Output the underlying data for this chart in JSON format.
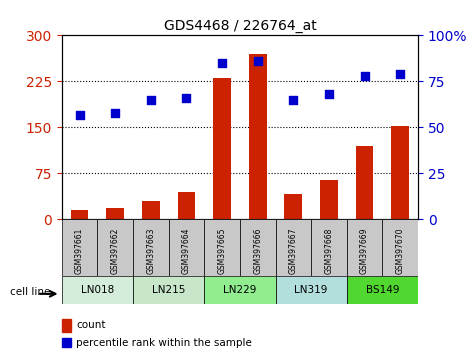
{
  "title": "GDS4468 / 226764_at",
  "samples": [
    "GSM397661",
    "GSM397662",
    "GSM397663",
    "GSM397664",
    "GSM397665",
    "GSM397666",
    "GSM397667",
    "GSM397668",
    "GSM397669",
    "GSM397670"
  ],
  "count_values": [
    15,
    18,
    30,
    45,
    230,
    270,
    42,
    65,
    120,
    152
  ],
  "percentile_values": [
    57,
    58,
    65,
    66,
    85,
    86,
    65,
    68,
    78,
    79
  ],
  "cell_lines": [
    {
      "label": "LN018",
      "start": 0,
      "end": 2,
      "color": "#d4edda"
    },
    {
      "label": "LN215",
      "start": 2,
      "end": 4,
      "color": "#c8e6c9"
    },
    {
      "label": "LN229",
      "start": 4,
      "end": 6,
      "color": "#90ee90"
    },
    {
      "label": "LN319",
      "start": 6,
      "end": 8,
      "color": "#b2dfdb"
    },
    {
      "label": "BS149",
      "start": 8,
      "end": 10,
      "color": "#50d830"
    }
  ],
  "bar_color": "#cc2200",
  "dot_color": "#0000cc",
  "left_ylim": [
    0,
    300
  ],
  "right_ylim": [
    0,
    100
  ],
  "left_yticks": [
    0,
    75,
    150,
    225,
    300
  ],
  "right_yticks": [
    0,
    25,
    50,
    75,
    100
  ],
  "left_ylabel_color": "#cc2200",
  "right_ylabel_color": "#0000cc",
  "tick_area_color": "#c8c8c8",
  "legend_count_label": "count",
  "legend_percentile_label": "percentile rank within the sample",
  "cell_line_label": "cell line"
}
